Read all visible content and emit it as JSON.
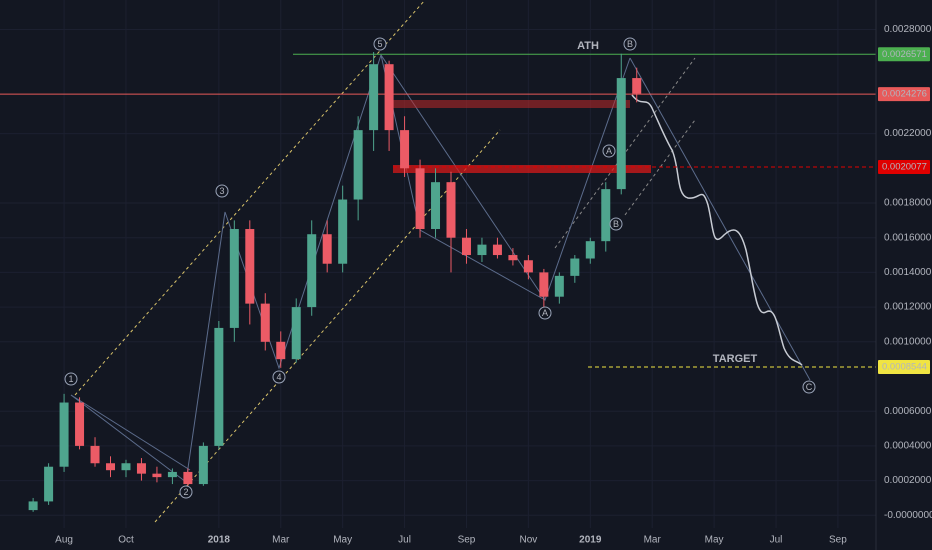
{
  "chart_data": {
    "type": "candlestick",
    "x": [
      0,
      0.5,
      1,
      1.5,
      2,
      2.5,
      3,
      3.5,
      4,
      4.5,
      5,
      5.5,
      6,
      6.5,
      7,
      7.5,
      8,
      8.5,
      9,
      9.5,
      10,
      10.5,
      11,
      11.5,
      12,
      12.5,
      13,
      13.5,
      14,
      14.5,
      15,
      15.5,
      16,
      16.5,
      17,
      17.5,
      18,
      18.5,
      19,
      19.5
    ],
    "open": [
      3e-05,
      8e-05,
      0.00028,
      0.00065,
      0.0004,
      0.0003,
      0.00026,
      0.0003,
      0.00024,
      0.00022,
      0.00025,
      0.00018,
      0.0004,
      0.00108,
      0.00165,
      0.00122,
      0.001,
      0.0009,
      0.0012,
      0.00162,
      0.00145,
      0.00182,
      0.00222,
      0.0026,
      0.00222,
      0.002,
      0.00165,
      0.00192,
      0.0016,
      0.0015,
      0.00156,
      0.0015,
      0.00147,
      0.0014,
      0.00126,
      0.00138,
      0.00148,
      0.00158,
      0.00188,
      0.00252
    ],
    "high": [
      0.0001,
      0.0003,
      0.0007,
      0.00068,
      0.00045,
      0.00034,
      0.00032,
      0.00033,
      0.00028,
      0.00027,
      0.00027,
      0.00042,
      0.00112,
      0.0017,
      0.0017,
      0.00128,
      0.00106,
      0.00125,
      0.0017,
      0.0017,
      0.0019,
      0.0023,
      0.00267,
      0.00262,
      0.0023,
      0.00205,
      0.002,
      0.00198,
      0.00165,
      0.0016,
      0.0016,
      0.00154,
      0.0015,
      0.00142,
      0.0014,
      0.0015,
      0.0016,
      0.00192,
      0.00266,
      0.00258
    ],
    "low": [
      2e-05,
      6e-05,
      0.00025,
      0.00038,
      0.00028,
      0.00022,
      0.00022,
      0.0002,
      0.00019,
      0.00018,
      0.00015,
      0.00017,
      0.00038,
      0.001,
      0.0011,
      0.00095,
      0.00085,
      0.00088,
      0.00115,
      0.0014,
      0.0014,
      0.0017,
      0.0021,
      0.0021,
      0.00195,
      0.0016,
      0.0016,
      0.0014,
      0.00145,
      0.00146,
      0.00148,
      0.00144,
      0.00136,
      0.0012,
      0.00122,
      0.00134,
      0.00145,
      0.00152,
      0.00185,
      0.00238
    ],
    "close": [
      8e-05,
      0.00028,
      0.00065,
      0.0004,
      0.0003,
      0.00026,
      0.0003,
      0.00024,
      0.00022,
      0.00025,
      0.00018,
      0.0004,
      0.00108,
      0.00165,
      0.00122,
      0.001,
      0.0009,
      0.0012,
      0.00162,
      0.00145,
      0.00182,
      0.00222,
      0.0026,
      0.00222,
      0.002,
      0.00165,
      0.00192,
      0.0016,
      0.0015,
      0.00156,
      0.0015,
      0.00147,
      0.0014,
      0.00126,
      0.00138,
      0.00148,
      0.00158,
      0.00188,
      0.00252,
      0.00243
    ],
    "up_color": "#4fa58e",
    "down_color": "#ec5b66",
    "xlim": [
      -1.07,
      27.23
    ],
    "xticks": [
      {
        "value": 1,
        "label": "Aug"
      },
      {
        "value": 3,
        "label": "Oct"
      },
      {
        "value": 6,
        "label": "2018"
      },
      {
        "value": 8,
        "label": "Mar"
      },
      {
        "value": 10,
        "label": "May"
      },
      {
        "value": 12,
        "label": "Jul"
      },
      {
        "value": 14,
        "label": "Sep"
      },
      {
        "value": 16,
        "label": "Nov"
      },
      {
        "value": 18,
        "label": "2019"
      },
      {
        "value": 20,
        "label": "Mar"
      },
      {
        "value": 22,
        "label": "May"
      },
      {
        "value": 24,
        "label": "Jul"
      },
      {
        "value": 26,
        "label": "Sep"
      }
    ],
    "ylim": [
      -0.0002,
      0.00297
    ],
    "yticks": [
      {
        "value": 0.0028,
        "label": "0.0028000"
      },
      {
        "value": 0.0022,
        "label": "0.0022000"
      },
      {
        "value": 0.0018,
        "label": "0.0018000"
      },
      {
        "value": 0.0016,
        "label": "0.0016000"
      },
      {
        "value": 0.0014,
        "label": "0.0014000"
      },
      {
        "value": 0.0012,
        "label": "0.0012000"
      },
      {
        "value": 0.001,
        "label": "0.0010000"
      },
      {
        "value": 0.0006,
        "label": "0.0006000"
      },
      {
        "value": 0.0004,
        "label": "0.0004000"
      },
      {
        "value": 0.0002,
        "label": "0.0002000"
      },
      {
        "value": 0,
        "label": "-0.0000000"
      }
    ],
    "grid": true,
    "levels": [
      {
        "value": 0.0026571,
        "label": "0.0026571",
        "name": "ATH",
        "color": "#4caf50"
      },
      {
        "value": 0.0024276,
        "label": "0.0024276",
        "color": "#e85a5a"
      },
      {
        "value": 0.0020077,
        "label": "0.0020077",
        "color": "#e00000"
      },
      {
        "value": 0.0008544,
        "label": "0.0008544",
        "name": "TARGET",
        "color": "#f0e442"
      }
    ],
    "wave_labels": [
      "1",
      "2",
      "3",
      "4",
      "5",
      "A",
      "B",
      "A",
      "B",
      "C"
    ]
  }
}
